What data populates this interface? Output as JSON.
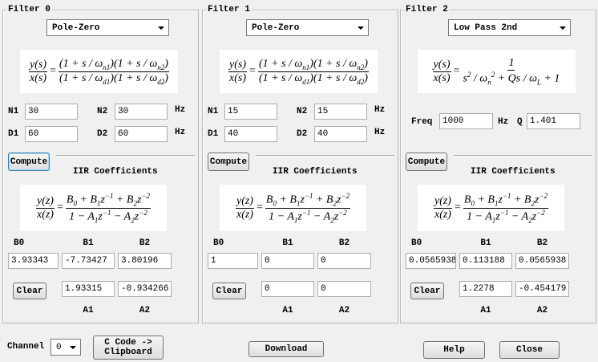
{
  "filters": [
    {
      "title": "Filter 0",
      "design": "Pole-Zero",
      "transfer": {
        "lhs_num": "y(s)",
        "lhs_den": "x(s)",
        "equals": "=",
        "num": [
          "(1 + s / ω",
          {
            "sub": "n1"
          },
          ")(1 + s / ω",
          {
            "sub": "n2"
          },
          ")"
        ],
        "den": [
          "(1 + s / ω",
          {
            "sub": "d1"
          },
          ")(1 + s / ω",
          {
            "sub": "d2"
          },
          ")"
        ]
      },
      "params": [
        {
          "label": "N1",
          "value": 30
        },
        {
          "label": "N2",
          "value": 30
        },
        {
          "label": "D1",
          "value": 60
        },
        {
          "label": "D2",
          "value": 60
        }
      ],
      "unit": "Hz",
      "compute": "Compute",
      "coefficients_title": "IIR Coefficients",
      "iir": {
        "lhs_num": "y(z)",
        "lhs_den": "x(z)",
        "equals": "=",
        "num": [
          "B",
          {
            "sub": "0"
          },
          " + B",
          {
            "sub": "1"
          },
          "z",
          {
            "sup": "−1"
          },
          " + B",
          {
            "sub": "2"
          },
          "z",
          {
            "sup": "−2"
          }
        ],
        "den": [
          "1 − A",
          {
            "sub": "1"
          },
          "z",
          {
            "sup": "−1"
          },
          " − A",
          {
            "sub": "2"
          },
          "z",
          {
            "sup": "−2"
          }
        ]
      },
      "b": [
        {
          "label": "B0",
          "value": 3.93343
        },
        {
          "label": "B1",
          "value": -7.73427
        },
        {
          "label": "B2",
          "value": 3.80196
        }
      ],
      "clear": "Clear",
      "a": [
        {
          "label": "A1",
          "value": 1.93315
        },
        {
          "label": "A2",
          "value": -0.934266
        }
      ]
    },
    {
      "title": "Filter 1",
      "design": "Pole-Zero",
      "transfer": {
        "lhs_num": "y(s)",
        "lhs_den": "x(s)",
        "equals": "=",
        "num": [
          "(1 + s / ω",
          {
            "sub": "n1"
          },
          ")(1 + s / ω",
          {
            "sub": "n2"
          },
          ")"
        ],
        "den": [
          "(1 + s / ω",
          {
            "sub": "d1"
          },
          ")(1 + s / ω",
          {
            "sub": "d2"
          },
          ")"
        ]
      },
      "params": [
        {
          "label": "N1",
          "value": 15
        },
        {
          "label": "N2",
          "value": 15
        },
        {
          "label": "D1",
          "value": 40
        },
        {
          "label": "D2",
          "value": 40
        }
      ],
      "unit": "Hz",
      "compute": "Compute",
      "coefficients_title": "IIR Coefficients",
      "iir": {
        "lhs_num": "y(z)",
        "lhs_den": "x(z)",
        "equals": "=",
        "num": [
          "B",
          {
            "sub": "0"
          },
          " + B",
          {
            "sub": "1"
          },
          "z",
          {
            "sup": "−1"
          },
          " + B",
          {
            "sub": "2"
          },
          "z",
          {
            "sup": "−2"
          }
        ],
        "den": [
          "1 − A",
          {
            "sub": "1"
          },
          "z",
          {
            "sup": "−1"
          },
          " − A",
          {
            "sub": "2"
          },
          "z",
          {
            "sup": "−2"
          }
        ]
      },
      "b": [
        {
          "label": "B0",
          "value": 1
        },
        {
          "label": "B1",
          "value": 0
        },
        {
          "label": "B2",
          "value": 0
        }
      ],
      "clear": "Clear",
      "a": [
        {
          "label": "A1",
          "value": 0
        },
        {
          "label": "A2",
          "value": 0
        }
      ]
    },
    {
      "title": "Filter 2",
      "design": "Low Pass 2nd",
      "transfer": {
        "lhs_num": "y(s)",
        "lhs_den": "x(s)",
        "equals": "=",
        "num": [
          "1"
        ],
        "den": [
          "s",
          {
            "sup": "2"
          },
          " / ω",
          {
            "sub": "n"
          },
          {
            "sup": "2"
          },
          " + Qs / ω",
          {
            "sub": "L"
          },
          " + 1"
        ]
      },
      "params": [
        {
          "label": "Freq",
          "value": 1000
        },
        {
          "label": "Q",
          "value": 1.401
        }
      ],
      "unit": "Hz",
      "compute": "Compute",
      "coefficients_title": "IIR Coefficients",
      "iir": {
        "lhs_num": "y(z)",
        "lhs_den": "x(z)",
        "equals": "=",
        "num": [
          "B",
          {
            "sub": "0"
          },
          " + B",
          {
            "sub": "1"
          },
          "z",
          {
            "sup": "−1"
          },
          " + B",
          {
            "sub": "2"
          },
          "z",
          {
            "sup": "−2"
          }
        ],
        "den": [
          "1 − A",
          {
            "sub": "1"
          },
          "z",
          {
            "sup": "−1"
          },
          " − A",
          {
            "sub": "2"
          },
          "z",
          {
            "sup": "−2"
          }
        ]
      },
      "b": [
        {
          "label": "B0",
          "value": 0.0565938
        },
        {
          "label": "B1",
          "value": 0.113188
        },
        {
          "label": "B2",
          "value": 0.0565938
        }
      ],
      "clear": "Clear",
      "a": [
        {
          "label": "A1",
          "value": 1.2278
        },
        {
          "label": "A2",
          "value": -0.454179
        }
      ]
    }
  ],
  "footer": {
    "channel_label": "Channel",
    "channel": 0,
    "copy_button": [
      "C Code ->",
      "Clipboard"
    ],
    "download": "Download",
    "help": "Help",
    "close": "Close"
  }
}
